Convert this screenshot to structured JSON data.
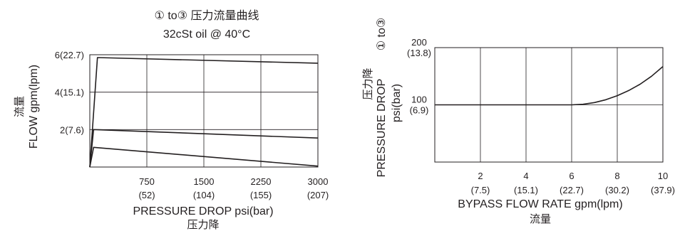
{
  "chart_data": [
    {
      "type": "line",
      "title": "① to③ 压力流量曲线",
      "subtitle": "32cSt oil @ 40°C",
      "xlabel": "PRESSURE DROP psi(bar)",
      "xlabel_cn": "压力降",
      "ylabel": "FLOW  gpm(lpm)",
      "ylabel_cn": "流量",
      "xlim": [
        0,
        3000
      ],
      "ylim": [
        0,
        6
      ],
      "grid": true,
      "x_ticks": [
        {
          "value": 750,
          "label": "750",
          "sublabel": "(52)"
        },
        {
          "value": 1500,
          "label": "1500",
          "sublabel": "(104)"
        },
        {
          "value": 2250,
          "label": "2250",
          "sublabel": "(155)"
        },
        {
          "value": 3000,
          "label": "3000",
          "sublabel": "(207)"
        }
      ],
      "y_ticks": [
        {
          "value": 2,
          "label": "2(7.6)"
        },
        {
          "value": 4,
          "label": "4(15.1)"
        },
        {
          "value": 6,
          "label": "6(22.7)"
        }
      ],
      "series": [
        {
          "x": [
            0,
            100,
            3000
          ],
          "y": [
            0,
            5.85,
            5.55
          ]
        },
        {
          "x": [
            0,
            50,
            3000
          ],
          "y": [
            0,
            2.0,
            1.55
          ]
        },
        {
          "x": [
            0,
            50,
            3000
          ],
          "y": [
            0,
            1.05,
            0.05
          ]
        }
      ]
    },
    {
      "type": "line",
      "side_label": "① to③",
      "xlabel": "BYPASS FLOW RATE gpm(lpm)",
      "xlabel_cn": "流量",
      "ylabel": "PRESSURE DROP",
      "ylabel_units": "psi(bar)",
      "ylabel_cn": "压力降",
      "xlim": [
        0,
        10
      ],
      "ylim": [
        0,
        200
      ],
      "grid": true,
      "x_ticks": [
        {
          "value": 2,
          "label": "2",
          "sublabel": "(7.5)"
        },
        {
          "value": 4,
          "label": "4",
          "sublabel": "(15.1)"
        },
        {
          "value": 6,
          "label": "6",
          "sublabel": "(22.7)"
        },
        {
          "value": 8,
          "label": "8",
          "sublabel": "(30.2)"
        },
        {
          "value": 10,
          "label": "10",
          "sublabel": "(37.9)"
        }
      ],
      "y_ticks": [
        {
          "value": 100,
          "label": "100",
          "sublabel": "(6.9)"
        },
        {
          "value": 200,
          "label": "200",
          "sublabel": "(13.8)"
        }
      ],
      "series": [
        {
          "x": [
            0,
            6,
            6.5,
            7,
            7.5,
            8,
            8.5,
            9,
            9.5,
            10
          ],
          "y": [
            100,
            100,
            101,
            104,
            109,
            116,
            125,
            136,
            150,
            167
          ]
        }
      ]
    }
  ]
}
